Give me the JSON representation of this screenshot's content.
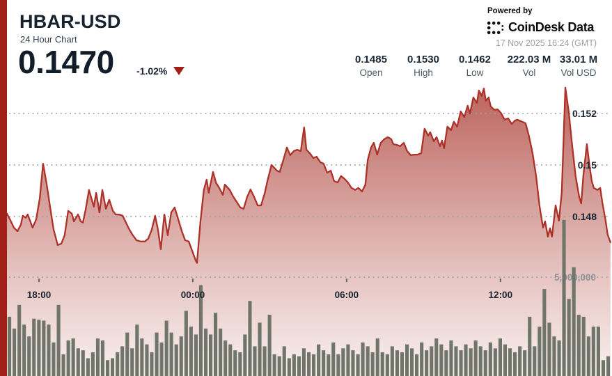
{
  "header": {
    "symbol": "HBAR-USD",
    "subtitle": "24 Hour Chart",
    "price": "0.1470",
    "change_pct": "-1.02%",
    "change_direction": "down",
    "powered_by": "Powered by",
    "brand": "CoinDesk Data",
    "timestamp": "17 Nov 2025 16:24 (GMT)",
    "stats": [
      {
        "value": "0.1485",
        "label": "Open"
      },
      {
        "value": "0.1530",
        "label": "High"
      },
      {
        "value": "0.1462",
        "label": "Low"
      },
      {
        "value": "222.03 M",
        "label": "Vol"
      },
      {
        "value": "33.01 M",
        "label": "Vol USD"
      }
    ]
  },
  "colors": {
    "accent_red": "#A02018",
    "line": "#AC3129",
    "fill_top": "rgba(165,44,36,0.75)",
    "fill_mid": "rgba(172,60,50,0.42)",
    "fill_bottom": "rgba(185,95,85,0.10)",
    "volume_bar": "#6F7568",
    "navy": "#1A2430",
    "grid_dot": "#9BA1A6",
    "muted_label": "#8D9399",
    "tick_mark": "#5D6670"
  },
  "chart_data": {
    "type": "area",
    "title": "HBAR-USD 24 Hour Chart",
    "legend": "none",
    "grid": "dotted horizontal",
    "x_axis": {
      "span_hours": 23.6,
      "ticks": [
        {
          "t": 1.25,
          "label": "18:00"
        },
        {
          "t": 7.25,
          "label": "00:00"
        },
        {
          "t": 13.25,
          "label": "06:00"
        },
        {
          "t": 19.25,
          "label": "12:00"
        }
      ]
    },
    "y_axis": {
      "ylim": [
        0.14181,
        0.15316
      ],
      "ticks": [
        {
          "value": 0.152,
          "label": "0.152"
        },
        {
          "value": 0.15,
          "label": "0.15"
        },
        {
          "value": 0.148,
          "label": "0.148"
        }
      ]
    },
    "volume_axis": {
      "ylim_millions": [
        0,
        14.8
      ],
      "gridline_value_millions": 5,
      "gridline_label": "5,000,000"
    },
    "price_series": [
      [
        0.0,
        0.14811
      ],
      [
        0.14,
        0.14784
      ],
      [
        0.27,
        0.14757
      ],
      [
        0.41,
        0.14743
      ],
      [
        0.54,
        0.14768
      ],
      [
        0.62,
        0.14803
      ],
      [
        0.73,
        0.14795
      ],
      [
        0.81,
        0.14808
      ],
      [
        0.9,
        0.14784
      ],
      [
        1.0,
        0.14757
      ],
      [
        1.14,
        0.14789
      ],
      [
        1.28,
        0.1487
      ],
      [
        1.41,
        0.15005
      ],
      [
        1.55,
        0.14924
      ],
      [
        1.68,
        0.14838
      ],
      [
        1.82,
        0.14749
      ],
      [
        1.98,
        0.14689
      ],
      [
        2.12,
        0.14695
      ],
      [
        2.25,
        0.14727
      ],
      [
        2.39,
        0.14822
      ],
      [
        2.53,
        0.14811
      ],
      [
        2.61,
        0.14781
      ],
      [
        2.77,
        0.14808
      ],
      [
        2.88,
        0.14781
      ],
      [
        2.96,
        0.14776
      ],
      [
        3.07,
        0.14827
      ],
      [
        3.2,
        0.14903
      ],
      [
        3.31,
        0.14865
      ],
      [
        3.39,
        0.14838
      ],
      [
        3.48,
        0.14892
      ],
      [
        3.61,
        0.14816
      ],
      [
        3.72,
        0.14903
      ],
      [
        3.86,
        0.1483
      ],
      [
        3.99,
        0.14865
      ],
      [
        4.13,
        0.14822
      ],
      [
        4.24,
        0.14808
      ],
      [
        4.37,
        0.14808
      ],
      [
        4.51,
        0.14803
      ],
      [
        4.62,
        0.14781
      ],
      [
        4.75,
        0.14754
      ],
      [
        4.89,
        0.1473
      ],
      [
        5.05,
        0.14708
      ],
      [
        5.21,
        0.14703
      ],
      [
        5.38,
        0.14703
      ],
      [
        5.51,
        0.14714
      ],
      [
        5.65,
        0.14749
      ],
      [
        5.78,
        0.14803
      ],
      [
        5.89,
        0.14749
      ],
      [
        6.0,
        0.14673
      ],
      [
        6.14,
        0.14808
      ],
      [
        6.27,
        0.14727
      ],
      [
        6.41,
        0.14816
      ],
      [
        6.54,
        0.14835
      ],
      [
        6.68,
        0.14789
      ],
      [
        6.82,
        0.14743
      ],
      [
        6.95,
        0.14708
      ],
      [
        7.09,
        0.14703
      ],
      [
        7.22,
        0.14668
      ],
      [
        7.36,
        0.1463
      ],
      [
        7.41,
        0.1462
      ],
      [
        7.55,
        0.14784
      ],
      [
        7.68,
        0.14903
      ],
      [
        7.79,
        0.14943
      ],
      [
        7.87,
        0.14892
      ],
      [
        8.04,
        0.14973
      ],
      [
        8.15,
        0.14932
      ],
      [
        8.28,
        0.14911
      ],
      [
        8.42,
        0.14884
      ],
      [
        8.5,
        0.14924
      ],
      [
        8.69,
        0.14903
      ],
      [
        8.82,
        0.14878
      ],
      [
        8.96,
        0.14857
      ],
      [
        9.1,
        0.14835
      ],
      [
        9.23,
        0.1483
      ],
      [
        9.37,
        0.14876
      ],
      [
        9.5,
        0.14905
      ],
      [
        9.64,
        0.14876
      ],
      [
        9.78,
        0.14843
      ],
      [
        9.91,
        0.14843
      ],
      [
        10.05,
        0.14889
      ],
      [
        10.18,
        0.14946
      ],
      [
        10.32,
        0.15
      ],
      [
        10.4,
        0.14992
      ],
      [
        10.53,
        0.14978
      ],
      [
        10.64,
        0.14973
      ],
      [
        10.78,
        0.15019
      ],
      [
        10.92,
        0.15068
      ],
      [
        11.05,
        0.15038
      ],
      [
        11.19,
        0.15054
      ],
      [
        11.32,
        0.15059
      ],
      [
        11.46,
        0.15054
      ],
      [
        11.59,
        0.15146
      ],
      [
        11.68,
        0.15059
      ],
      [
        11.81,
        0.15046
      ],
      [
        11.95,
        0.15027
      ],
      [
        12.08,
        0.15032
      ],
      [
        12.22,
        0.15011
      ],
      [
        12.35,
        0.15005
      ],
      [
        12.49,
        0.1497
      ],
      [
        12.63,
        0.14978
      ],
      [
        12.76,
        0.14938
      ],
      [
        12.9,
        0.14932
      ],
      [
        13.03,
        0.14957
      ],
      [
        13.17,
        0.14946
      ],
      [
        13.3,
        0.14932
      ],
      [
        13.44,
        0.14911
      ],
      [
        13.58,
        0.14903
      ],
      [
        13.71,
        0.14911
      ],
      [
        13.85,
        0.14897
      ],
      [
        13.98,
        0.14924
      ],
      [
        14.07,
        0.15019
      ],
      [
        14.2,
        0.15068
      ],
      [
        14.31,
        0.15086
      ],
      [
        14.44,
        0.1504
      ],
      [
        14.58,
        0.15086
      ],
      [
        14.72,
        0.151
      ],
      [
        14.85,
        0.15108
      ],
      [
        14.99,
        0.151
      ],
      [
        15.07,
        0.15081
      ],
      [
        15.21,
        0.15078
      ],
      [
        15.34,
        0.15073
      ],
      [
        15.48,
        0.15086
      ],
      [
        15.61,
        0.15054
      ],
      [
        15.75,
        0.15038
      ],
      [
        15.88,
        0.1504
      ],
      [
        16.02,
        0.1504
      ],
      [
        16.16,
        0.15046
      ],
      [
        16.29,
        0.15141
      ],
      [
        16.43,
        0.15114
      ],
      [
        16.51,
        0.15127
      ],
      [
        16.65,
        0.15092
      ],
      [
        16.76,
        0.15108
      ],
      [
        16.89,
        0.15073
      ],
      [
        16.97,
        0.15095
      ],
      [
        17.05,
        0.15065
      ],
      [
        17.18,
        0.15149
      ],
      [
        17.32,
        0.15135
      ],
      [
        17.43,
        0.15168
      ],
      [
        17.56,
        0.15149
      ],
      [
        17.7,
        0.15208
      ],
      [
        17.84,
        0.15186
      ],
      [
        17.97,
        0.1523
      ],
      [
        18.06,
        0.152
      ],
      [
        18.19,
        0.15262
      ],
      [
        18.33,
        0.15241
      ],
      [
        18.41,
        0.15289
      ],
      [
        18.52,
        0.15268
      ],
      [
        18.6,
        0.15297
      ],
      [
        18.68,
        0.15249
      ],
      [
        18.79,
        0.15262
      ],
      [
        18.87,
        0.15227
      ],
      [
        19.01,
        0.15214
      ],
      [
        19.14,
        0.15216
      ],
      [
        19.28,
        0.152
      ],
      [
        19.41,
        0.15176
      ],
      [
        19.55,
        0.15181
      ],
      [
        19.69,
        0.15159
      ],
      [
        19.82,
        0.15173
      ],
      [
        19.9,
        0.15176
      ],
      [
        20.09,
        0.15168
      ],
      [
        20.23,
        0.15162
      ],
      [
        20.37,
        0.15108
      ],
      [
        20.5,
        0.15046
      ],
      [
        20.64,
        0.14957
      ],
      [
        20.77,
        0.14843
      ],
      [
        20.91,
        0.14757
      ],
      [
        20.99,
        0.14781
      ],
      [
        21.1,
        0.14722
      ],
      [
        21.18,
        0.14754
      ],
      [
        21.26,
        0.14722
      ],
      [
        21.4,
        0.14843
      ],
      [
        21.53,
        0.14784
      ],
      [
        21.64,
        0.14892
      ],
      [
        21.78,
        0.153
      ],
      [
        21.91,
        0.15208
      ],
      [
        22.05,
        0.15073
      ],
      [
        22.18,
        0.14957
      ],
      [
        22.32,
        0.14876
      ],
      [
        22.4,
        0.14851
      ],
      [
        22.48,
        0.14957
      ],
      [
        22.62,
        0.15081
      ],
      [
        22.73,
        0.14992
      ],
      [
        22.81,
        0.14938
      ],
      [
        22.89,
        0.14911
      ],
      [
        23.03,
        0.14903
      ],
      [
        23.14,
        0.14911
      ],
      [
        23.22,
        0.14857
      ],
      [
        23.35,
        0.14784
      ],
      [
        23.43,
        0.1473
      ],
      [
        23.54,
        0.147
      ]
    ],
    "volume_series_millions": [
      3.0,
      2.4,
      3.6,
      2.6,
      2.0,
      2.9,
      2.85,
      2.8,
      2.6,
      1.7,
      3.6,
      1.1,
      1.8,
      1.9,
      1.4,
      1.3,
      0.9,
      1.2,
      1.9,
      1.8,
      0.8,
      0.9,
      1.2,
      1.5,
      2.2,
      1.4,
      2.6,
      1.9,
      1.6,
      1.2,
      2.2,
      1.7,
      2.8,
      2.2,
      1.6,
      2.0,
      3.3,
      2.5,
      2.1,
      4.6,
      2.4,
      2.1,
      3.2,
      2.4,
      1.8,
      1.6,
      1.3,
      1.2,
      2.1,
      3.8,
      1.5,
      2.7,
      1.5,
      3.1,
      1.1,
      1.0,
      1.5,
      0.9,
      1.1,
      1.0,
      1.4,
      1.2,
      1.1,
      1.6,
      1.3,
      1.1,
      1.7,
      1.1,
      1.4,
      1.6,
      1.3,
      1.1,
      1.7,
      1.5,
      1.2,
      1.9,
      1.2,
      1.1,
      1.5,
      1.3,
      1.2,
      1.6,
      1.4,
      1.1,
      1.7,
      1.3,
      1.5,
      1.9,
      1.6,
      1.3,
      1.8,
      1.5,
      1.3,
      1.6,
      1.4,
      1.8,
      1.5,
      1.3,
      1.7,
      1.4,
      1.9,
      1.6,
      1.4,
      1.2,
      1.5,
      1.3,
      3.0,
      1.5,
      2.5,
      4.4,
      2.7,
      2.0,
      1.8,
      7.9,
      3.9,
      5.5,
      3.1,
      3.0,
      2.0,
      2.5,
      2.5,
      0.8,
      1.0
    ]
  }
}
